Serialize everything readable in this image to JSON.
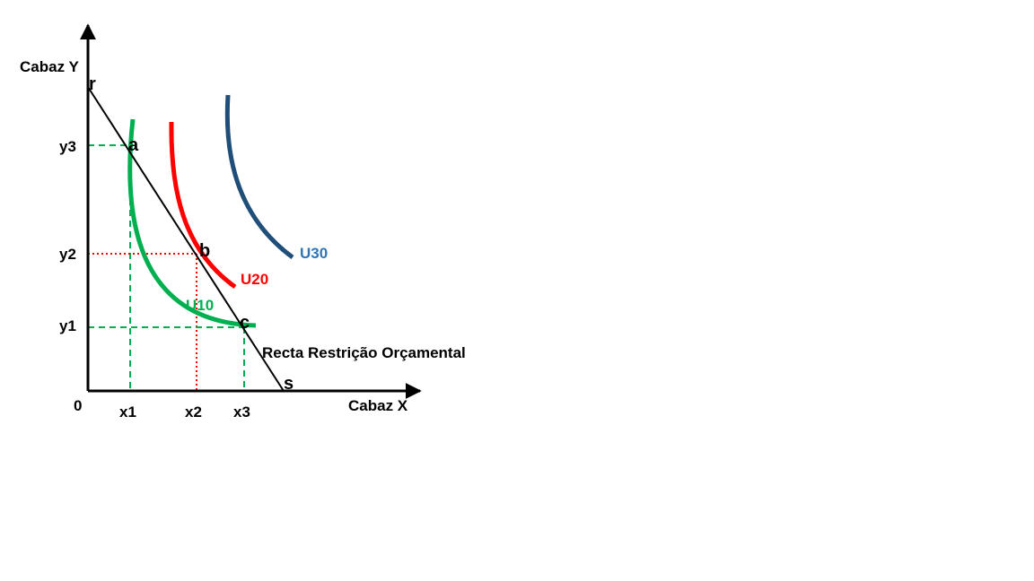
{
  "axes": {
    "y_label": "Cabaz Y",
    "x_label": "Cabaz X",
    "origin": "0"
  },
  "ticks": {
    "x": [
      "x1",
      "x2",
      "x3"
    ],
    "y": [
      "y3",
      "y2",
      "y1"
    ]
  },
  "points": {
    "r": "r",
    "s": "s",
    "a": "a",
    "b": "b",
    "c": "c"
  },
  "curves": {
    "u10": {
      "label": "U10",
      "color": "#00b050"
    },
    "u20": {
      "label": "U20",
      "color": "#ff0000"
    },
    "u30": {
      "label": "U30",
      "color": "#1f4e79",
      "label_color": "#2e75b6"
    }
  },
  "budget_line": {
    "label": "Recta Restrição Orçamental",
    "color": "#000000"
  },
  "guide_colors": {
    "green": "#00b050",
    "red": "#ff0000"
  }
}
